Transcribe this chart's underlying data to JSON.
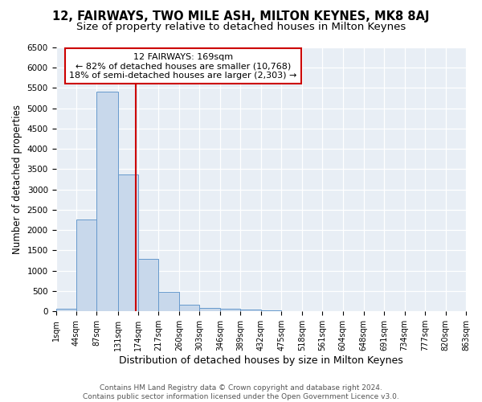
{
  "title": "12, FAIRWAYS, TWO MILE ASH, MILTON KEYNES, MK8 8AJ",
  "subtitle": "Size of property relative to detached houses in Milton Keynes",
  "xlabel": "Distribution of detached houses by size in Milton Keynes",
  "ylabel": "Number of detached properties",
  "bin_edges": [
    1,
    44,
    87,
    131,
    174,
    217,
    260,
    303,
    346,
    389,
    432,
    475,
    518,
    561,
    604,
    648,
    691,
    734,
    777,
    820,
    863
  ],
  "bin_counts": [
    70,
    2270,
    5420,
    3380,
    1290,
    480,
    165,
    90,
    55,
    35,
    20,
    10,
    5,
    3,
    2,
    1,
    1,
    1,
    0,
    0
  ],
  "bar_facecolor": "#c8d8eb",
  "bar_edgecolor": "#6699cc",
  "property_size": 169,
  "property_label": "12 FAIRWAYS: 169sqm",
  "annotation_line1": "← 82% of detached houses are smaller (10,768)",
  "annotation_line2": "18% of semi-detached houses are larger (2,303) →",
  "vline_color": "#cc0000",
  "annotation_box_edgecolor": "#cc0000",
  "ylim": [
    0,
    6500
  ],
  "yticks": [
    0,
    500,
    1000,
    1500,
    2000,
    2500,
    3000,
    3500,
    4000,
    4500,
    5000,
    5500,
    6000,
    6500
  ],
  "tick_labels": [
    "1sqm",
    "44sqm",
    "87sqm",
    "131sqm",
    "174sqm",
    "217sqm",
    "260sqm",
    "303sqm",
    "346sqm",
    "389sqm",
    "432sqm",
    "475sqm",
    "518sqm",
    "561sqm",
    "604sqm",
    "648sqm",
    "691sqm",
    "734sqm",
    "777sqm",
    "820sqm",
    "863sqm"
  ],
  "footer_line1": "Contains HM Land Registry data © Crown copyright and database right 2024.",
  "footer_line2": "Contains public sector information licensed under the Open Government Licence v3.0.",
  "bg_color": "#ffffff",
  "plot_bg_color": "#e8eef5",
  "title_fontsize": 10.5,
  "subtitle_fontsize": 9.5,
  "ylabel_fontsize": 8.5,
  "xlabel_fontsize": 9,
  "annotation_fontsize": 8,
  "footer_fontsize": 6.5
}
